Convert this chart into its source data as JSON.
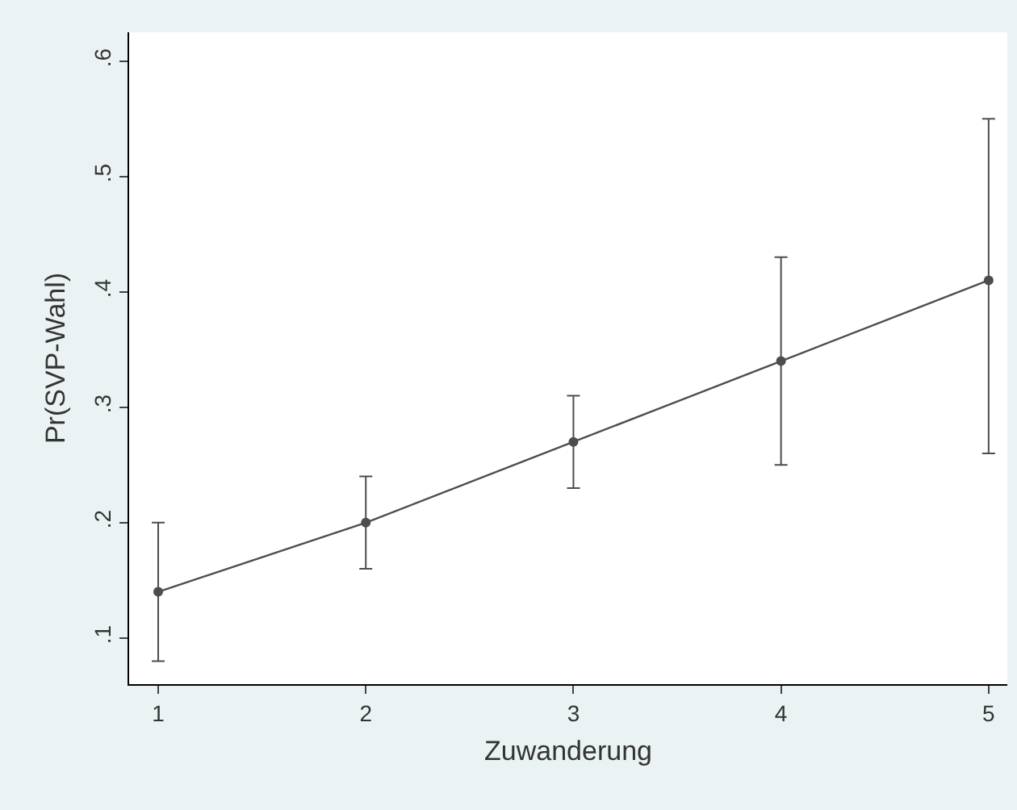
{
  "chart_data": {
    "type": "line",
    "xlabel": "Zuwanderung",
    "ylabel": "Pr(SVP-Wahl)",
    "x": [
      1,
      2,
      3,
      4,
      5
    ],
    "series": [
      {
        "color": "#4d4d4d",
        "values": [
          0.14,
          0.2,
          0.27,
          0.34,
          0.41
        ],
        "errors": [
          [
            0.08,
            0.2
          ],
          [
            0.16,
            0.24
          ],
          [
            0.23,
            0.31
          ],
          [
            0.25,
            0.43
          ],
          [
            0.26,
            0.55
          ]
        ]
      }
    ],
    "xlim": [
      0.86,
      5.09
    ],
    "xticks": [
      1,
      2,
      3,
      4,
      5
    ],
    "ylim": [
      0.06,
      0.625
    ],
    "yticks": [
      {
        "value": 0.1,
        "label": ".1"
      },
      {
        "value": 0.2,
        "label": ".2"
      },
      {
        "value": 0.3,
        "label": ".3"
      },
      {
        "value": 0.4,
        "label": ".4"
      },
      {
        "value": 0.5,
        "label": ".5"
      },
      {
        "value": 0.6,
        "label": ".6"
      }
    ],
    "grid": false,
    "marker": "circle",
    "line_style": "solid"
  }
}
